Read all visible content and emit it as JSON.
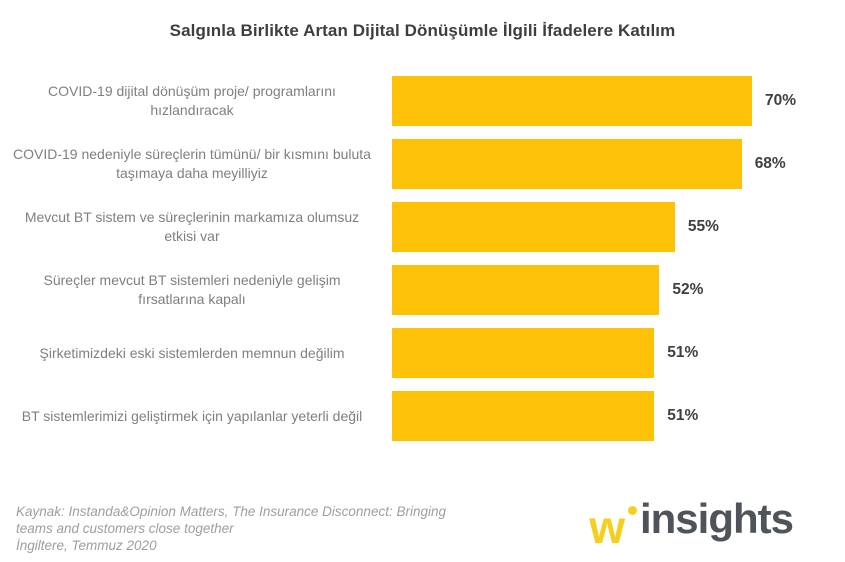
{
  "title": "Salgınla Birlikte Artan Dijital Dönüşümle İlgili İfadelere Katılım",
  "chart_data": {
    "type": "bar",
    "orientation": "horizontal",
    "title": "Salgınla Birlikte Artan Dijital Dönüşümle İlgili İfadelere Katılım",
    "categories": [
      "COVID-19 dijital dönüşüm proje/ programlarını hızlandıracak",
      "COVID-19 nedeniyle süreçlerin tümünü/ bir  kısmını buluta taşımaya daha meyilliyiz",
      "Mevcut BT sistem ve süreçlerinin markamıza olumsuz etkisi var",
      "Süreçler mevcut BT sistemleri nedeniyle gelişim fırsatlarına kapalı",
      "Şirketimizdeki eski sistemlerden memnun değilim",
      "BT sistemlerimizi geliştirmek için yapılanlar yeterli değil"
    ],
    "values": [
      70,
      68,
      55,
      52,
      51,
      51
    ],
    "value_labels": [
      "70%",
      "68%",
      "55%",
      "52%",
      "51%",
      "51%"
    ],
    "xlabel": "",
    "ylabel": "",
    "xlim": [
      0,
      78
    ],
    "grid": false,
    "legend": false,
    "bar_color": "#FDC107",
    "label_color": "#7f7f7f",
    "value_color": "#404040"
  },
  "footer": {
    "line1": "Kaynak: Instanda&Opinion Matters, The Insurance Disconnect: Bringing",
    "line2": "teams and customers close together",
    "line3": "İngiltere, Temmuz 2020"
  },
  "logo": {
    "w": "w",
    "text": "insights",
    "yellow": "#F3CF1E",
    "gray": "#4e545a"
  }
}
